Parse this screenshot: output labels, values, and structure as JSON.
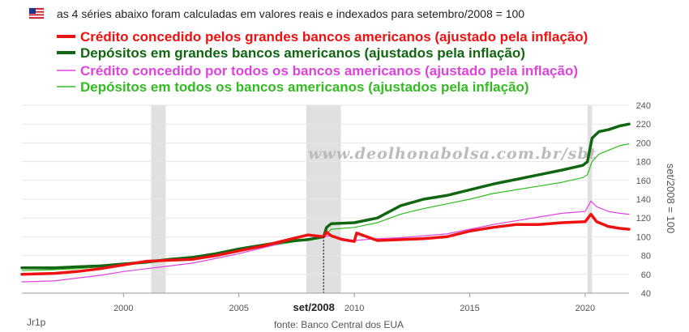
{
  "header": {
    "flag_icon": "us-flag-icon",
    "note": "as 4 séries abaixo foram calculadas em valores reais e indexados para setembro/2008 = 100"
  },
  "watermark": "www.deolhonabolsa.com.br/sbt",
  "colors": {
    "credito_grandes": "#ee1111",
    "depositos_grandes": "#116611",
    "credito_todos": "#dd44dd",
    "depositos_todos": "#33bb22",
    "recession": "#e0e0e0",
    "grid": "#e6e6e6"
  },
  "chart_data": {
    "type": "line",
    "x_unit": "year",
    "xlim": [
      1995.6,
      2021.9
    ],
    "ylim": [
      40,
      240
    ],
    "x_ticks": [
      "2000",
      "2005",
      "2010",
      "2015",
      "2020"
    ],
    "y_ticks": [
      "40",
      "60",
      "80",
      "100",
      "120",
      "140",
      "160",
      "180",
      "200",
      "220",
      "240"
    ],
    "ylabel": "set/2008 = 100",
    "highlight_label": "set/2008",
    "highlight_x": 2008.67,
    "source": "fonte: Banco Central dos EUA",
    "corner_label": "Jr1p",
    "recessions": [
      [
        2001.2,
        2001.83
      ],
      [
        2007.92,
        2009.42
      ],
      [
        2020.1,
        2020.3
      ]
    ],
    "series": [
      {
        "name": "Crédito concedido pelos grandes bancos americanos (ajustado pela inflação)",
        "color_key": "credito_grandes",
        "width": 3.5,
        "x": [
          1995.6,
          1997,
          1998,
          1999,
          2000,
          2001,
          2002,
          2003,
          2004,
          2005,
          2006,
          2007,
          2008,
          2008.67,
          2008.8,
          2009,
          2009.5,
          2010,
          2010.1,
          2011,
          2012,
          2013,
          2014,
          2015,
          2016,
          2017,
          2018,
          2019,
          2020,
          2020.25,
          2020.5,
          2021,
          2021.5,
          2021.9
        ],
        "y": [
          60,
          61,
          63,
          66,
          70,
          74,
          75,
          76,
          80,
          85,
          90,
          96,
          102,
          100,
          105,
          101,
          97,
          95,
          104,
          96,
          97,
          98,
          100,
          106,
          110,
          113,
          113,
          115,
          116,
          124,
          116,
          111,
          109,
          108
        ]
      },
      {
        "name": "Depósitos em grandes bancos americanos (ajustados pela inflação)",
        "color_key": "depositos_grandes",
        "width": 3.5,
        "x": [
          1995.6,
          1997,
          1998,
          1999,
          2000,
          2001,
          2002,
          2003,
          2004,
          2005,
          2006,
          2007,
          2008,
          2008.67,
          2008.8,
          2009,
          2010,
          2011,
          2012,
          2013,
          2014,
          2015,
          2016,
          2017,
          2018,
          2019,
          2019.9,
          2020.1,
          2020.3,
          2020.6,
          2021,
          2021.5,
          2021.9
        ],
        "y": [
          67,
          67,
          68,
          69,
          71,
          73,
          76,
          78,
          82,
          87,
          91,
          95,
          97,
          100,
          110,
          114,
          115,
          120,
          133,
          140,
          144,
          150,
          156,
          161,
          166,
          171,
          176,
          180,
          205,
          212,
          214,
          218,
          220
        ]
      },
      {
        "name": "Crédito concedido por todos os bancos americanos (ajustado pela inflação)",
        "color_key": "credito_todos",
        "width": 1.2,
        "x": [
          1995.6,
          1997,
          1998,
          1999,
          2000,
          2001,
          2002,
          2003,
          2004,
          2005,
          2006,
          2007,
          2008,
          2008.67,
          2009,
          2009.5,
          2010,
          2011,
          2012,
          2013,
          2014,
          2015,
          2016,
          2017,
          2018,
          2019,
          2020,
          2020.25,
          2020.5,
          2021,
          2021.5,
          2021.9
        ],
        "y": [
          52,
          53,
          56,
          59,
          63,
          66,
          69,
          72,
          77,
          82,
          88,
          94,
          98,
          100,
          101,
          98,
          96,
          98,
          99,
          101,
          103,
          108,
          113,
          117,
          121,
          125,
          127,
          138,
          132,
          127,
          125,
          124
        ]
      },
      {
        "name": "Depósitos em todos os bancos americanos (ajustados pela inflação)",
        "color_key": "depositos_todos",
        "width": 1.2,
        "x": [
          1995.6,
          1997,
          1998,
          1999,
          2000,
          2001,
          2002,
          2003,
          2004,
          2005,
          2006,
          2007,
          2008,
          2008.67,
          2009,
          2010,
          2011,
          2012,
          2013,
          2014,
          2015,
          2016,
          2017,
          2018,
          2019,
          2019.9,
          2020.1,
          2020.3,
          2020.6,
          2021,
          2021.5,
          2021.9
        ],
        "y": [
          64,
          65,
          66,
          68,
          70,
          72,
          75,
          78,
          81,
          85,
          89,
          93,
          97,
          100,
          108,
          110,
          115,
          124,
          130,
          135,
          140,
          146,
          150,
          154,
          158,
          163,
          166,
          180,
          188,
          192,
          197,
          199
        ]
      }
    ]
  }
}
